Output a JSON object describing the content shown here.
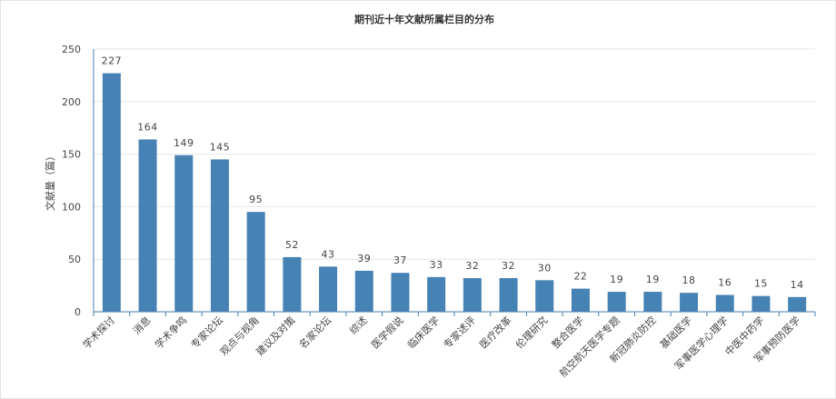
{
  "chart_data": {
    "type": "bar",
    "title": "期刊近十年文献所属栏目的分布",
    "xlabel": "",
    "ylabel": "文献量（篇）",
    "ylim": [
      0,
      250
    ],
    "yticks": [
      0,
      50,
      100,
      150,
      200,
      250
    ],
    "grid": true,
    "legend": "none",
    "categories": [
      "学术探讨",
      "消息",
      "学术争鸣",
      "专家论坛",
      "观点与视角",
      "建议及对策",
      "名家论坛",
      "综述",
      "医学假说",
      "临床医学",
      "专家述评",
      "医疗改革",
      "伦理研究",
      "整合医学",
      "航空航天医学专题",
      "新冠肺炎防控",
      "基础医学",
      "军事医学心理学",
      "中医中药学",
      "军事预防医学"
    ],
    "values": [
      227,
      164,
      149,
      145,
      95,
      52,
      43,
      39,
      37,
      33,
      32,
      32,
      30,
      22,
      19,
      19,
      18,
      16,
      15,
      14
    ],
    "colors": {
      "bar": "#4682b4",
      "axis": "#4a7fb0",
      "grid": "#e6e6e6"
    }
  }
}
